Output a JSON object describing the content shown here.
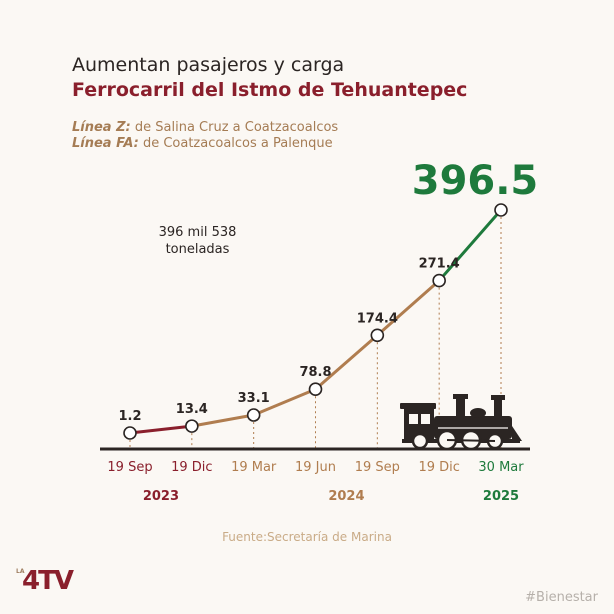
{
  "title": "Aumentan pasajeros y carga",
  "subtitle": "Ferrocarril del Istmo de Tehuantepec",
  "lines": {
    "z_label": "Línea Z:",
    "z_text": " de Salina Cruz a Coatzacoalcos",
    "fa_label": "Línea FA:",
    "fa_text": " de Coatzacoalcos a Palenque"
  },
  "annotation": {
    "line1": "396 mil 538",
    "line2": "toneladas"
  },
  "source": "Fuente:Secretaría de Marina",
  "logo": {
    "prefix": "LA",
    "name": "4TV"
  },
  "hashtag": "#Bienestar",
  "colors": {
    "red": "#8a1f2c",
    "brown": "#b07d4f",
    "green": "#1e7a3c",
    "dark": "#2b2523"
  },
  "chart_data": {
    "type": "line",
    "categories": [
      "19 Sep",
      "19 Dic",
      "19 Mar",
      "19 Jun",
      "19 Sep",
      "19 Dic",
      "30 Mar"
    ],
    "values": [
      1.2,
      13.4,
      33.1,
      78.8,
      174.4,
      271.4,
      396.5
    ],
    "value_labels": [
      "1.2",
      "13.4",
      "33.1",
      "78.8",
      "174.4",
      "271.4",
      "396.5"
    ],
    "years": [
      {
        "label": "2023",
        "color": "#8a1f2c",
        "from": 0,
        "to": 1
      },
      {
        "label": "2024",
        "color": "#b07d4f",
        "from": 2,
        "to": 5
      },
      {
        "label": "2025",
        "color": "#1e7a3c",
        "from": 6,
        "to": 6
      }
    ],
    "segment_colors": [
      "#8a1f2c",
      "#b07d4f",
      "#b07d4f",
      "#b07d4f",
      "#b07d4f",
      "#1e7a3c"
    ],
    "ylim": [
      0,
      400
    ],
    "highlight_index": 6,
    "decoration_icon": "locomotive-icon"
  }
}
